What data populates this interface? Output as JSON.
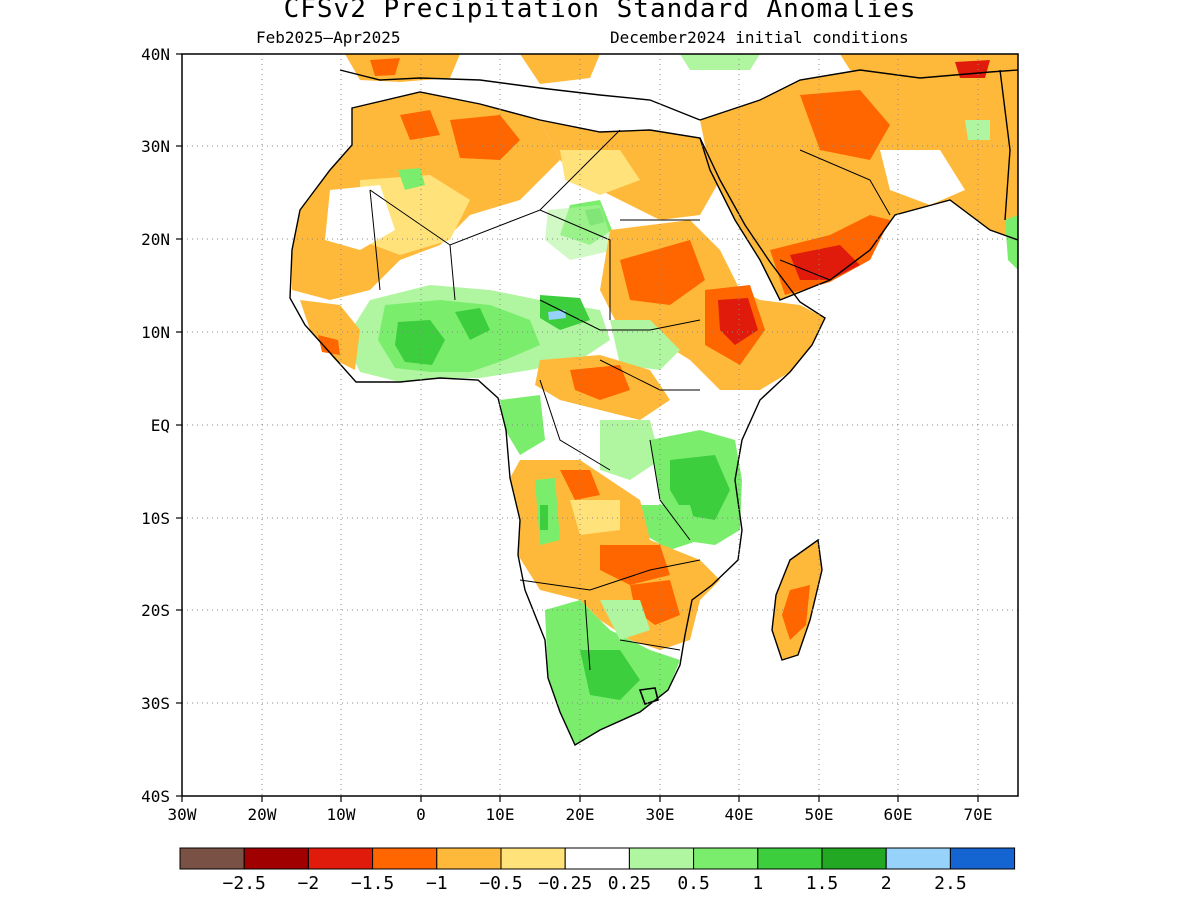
{
  "title": "CFSv2 Precipitation Standard Anomalies",
  "period": "Feb2025–Apr2025",
  "init": "December2024 initial conditions",
  "lat_labels": [
    "40N",
    "30N",
    "20N",
    "10N",
    "EQ",
    "10S",
    "20S",
    "30S",
    "40S"
  ],
  "lon_labels": [
    "30W",
    "20W",
    "10W",
    "0",
    "10E",
    "20E",
    "30E",
    "40E",
    "50E",
    "60E",
    "70E"
  ],
  "colorbar": {
    "colors": [
      "#7a5245",
      "#a10000",
      "#e01b0b",
      "#ff6600",
      "#ffb93a",
      "#ffe27a",
      "#ffffff",
      "#b0f5a0",
      "#7aee6c",
      "#3cce3c",
      "#22a822",
      "#96d2fa",
      "#1464d2"
    ],
    "labels": [
      "-2.5",
      "-2",
      "-1.5",
      "-1",
      "-0.5",
      "-0.25",
      "0.25",
      "0.5",
      "1",
      "1.5",
      "2",
      "2.5"
    ]
  },
  "map_extent": {
    "lon": [
      -30,
      75
    ],
    "lat": [
      -40,
      40
    ]
  }
}
